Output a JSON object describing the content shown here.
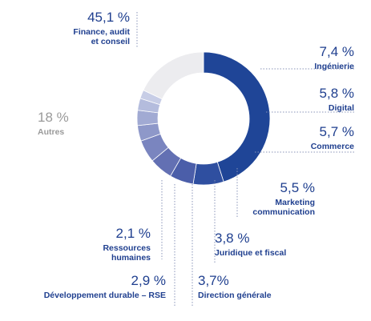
{
  "chart_data": {
    "type": "pie",
    "variant": "donut",
    "slices": [
      {
        "value_label": "45,1 %",
        "value": 45.1,
        "label": [
          "Finance, audit",
          "et conseil"
        ],
        "color": "#1f4597"
      },
      {
        "value_label": "7,4 %",
        "value": 7.4,
        "label": [
          "Ingénierie"
        ],
        "color": "#2f4fa0"
      },
      {
        "value_label": "5,8 %",
        "value": 5.8,
        "label": [
          "Digital"
        ],
        "color": "#4b5ea9"
      },
      {
        "value_label": "5,7 %",
        "value": 5.7,
        "label": [
          "Commerce"
        ],
        "color": "#6370b3"
      },
      {
        "value_label": "5,5 %",
        "value": 5.5,
        "label": [
          "Marketing",
          "communication"
        ],
        "color": "#7a85bf"
      },
      {
        "value_label": "3,8 %",
        "value": 3.8,
        "label": [
          "Juridique et fiscal"
        ],
        "color": "#8e98c9"
      },
      {
        "value_label": "3,7%",
        "value": 3.7,
        "label": [
          "Direction générale"
        ],
        "color": "#a1aad3"
      },
      {
        "value_label": "2,9 %",
        "value": 2.9,
        "label": [
          "Développement durable – RSE"
        ],
        "color": "#b4bcdd"
      },
      {
        "value_label": "2,1 %",
        "value": 2.1,
        "label": [
          "Ressources",
          "humaines"
        ],
        "color": "#c7cde6"
      },
      {
        "value_label": "18 %",
        "value": 18,
        "label": [
          "Autres"
        ],
        "color": "#ececef"
      }
    ]
  }
}
